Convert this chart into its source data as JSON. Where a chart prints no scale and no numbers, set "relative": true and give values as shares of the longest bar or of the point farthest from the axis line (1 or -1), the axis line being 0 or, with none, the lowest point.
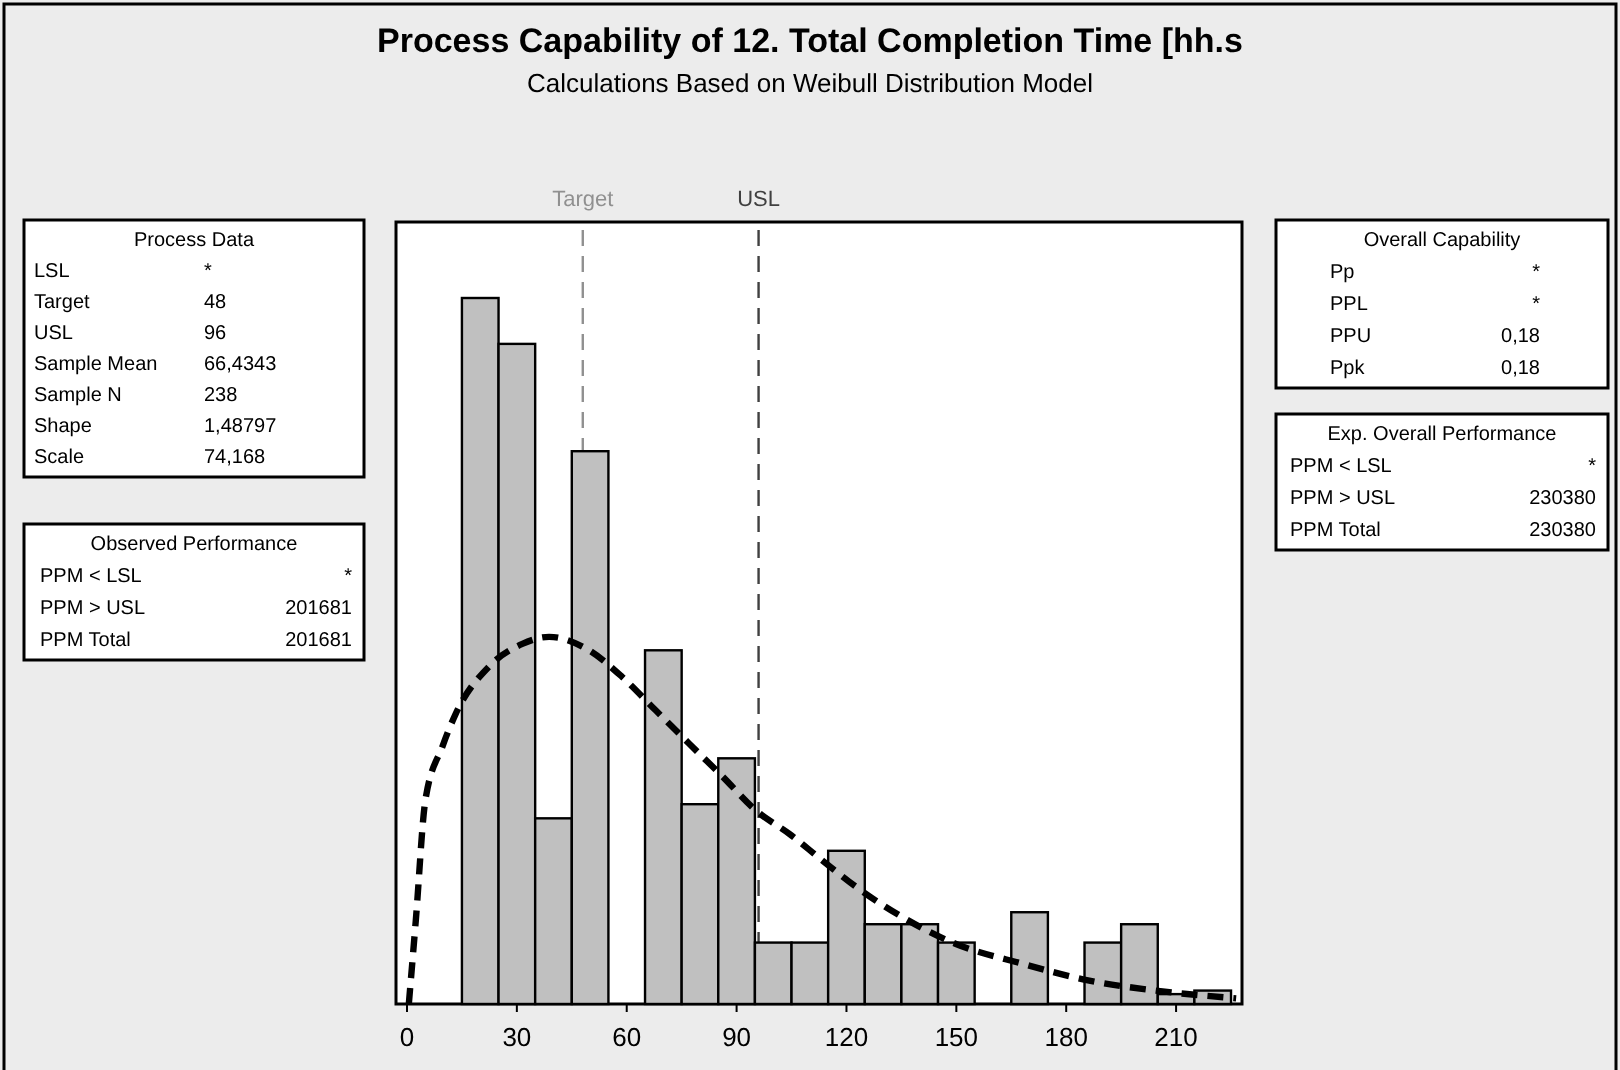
{
  "chart_data": [
    {
      "type": "histogram",
      "title": "Process Capability of 12. Total Completion Time [hh.s",
      "subtitle": "Calculations Based on Weibull Distribution Model",
      "relative": true,
      "color": "#c0c0c0",
      "bins": [
        15,
        25,
        35,
        45,
        55,
        65,
        75,
        85,
        95,
        105,
        115,
        125,
        135,
        145,
        155,
        165,
        175,
        185,
        195,
        205,
        215,
        225
      ],
      "values": [
        1,
        0.935,
        0.263,
        0.783,
        0,
        0.501,
        0.283,
        0.348,
        0.087,
        0.087,
        0.217,
        0.113,
        0.113,
        0.087,
        0,
        0.13,
        0,
        0.087,
        0.113,
        0.014,
        0.019
      ],
      "series": [
        {
          "type": "line",
          "color": "#000000",
          "line_style": "dashed",
          "x": [
            0.5,
            2.4,
            5,
            9.7,
            13.3,
            22.4,
            31.5,
            38.8,
            49.7,
            58.8,
            67.9,
            77,
            86.2,
            95.3,
            104.4,
            113.5,
            122.6,
            135.3,
            149.9,
            168.1,
            186.3,
            204.5,
            226.4
          ],
          "values": [
            0,
            0.118,
            0.288,
            0.365,
            0.411,
            0.478,
            0.51,
            0.52,
            0.501,
            0.463,
            0.416,
            0.369,
            0.322,
            0.274,
            0.241,
            0.203,
            0.166,
            0.123,
            0.085,
            0.057,
            0.033,
            0.019,
            0.008
          ]
        }
      ],
      "ref_lines": [
        {
          "axis": "x",
          "value": 48,
          "label": "Target",
          "color": "#909090",
          "line_style": "dashed"
        },
        {
          "axis": "x",
          "value": 96,
          "label": "USL",
          "color": "#404040",
          "line_style": "dashed"
        }
      ],
      "xlim": [
        -3,
        228
      ],
      "xticks": [
        0,
        30,
        60,
        90,
        120,
        150,
        180,
        210
      ]
    },
    {
      "type": "other",
      "title": "Process Data",
      "annotations": [
        "LSL",
        "*",
        "Target",
        "48",
        "USL",
        "96",
        "Sample Mean",
        "66,4343",
        "Sample N",
        "238",
        "Shape",
        "1,48797",
        "Scale",
        "74,168"
      ]
    },
    {
      "type": "other",
      "title": "Observed Performance",
      "annotations": [
        "PPM < LSL",
        "*",
        "PPM > USL",
        "201681",
        "PPM Total",
        "201681"
      ]
    },
    {
      "type": "other",
      "title": "Overall Capability",
      "annotations": [
        "Pp",
        "*",
        "PPL",
        "*",
        "PPU",
        "0,18",
        "Ppk",
        "0,18"
      ]
    },
    {
      "type": "other",
      "title": "Exp. Overall Performance",
      "annotations": [
        "PPM < LSL",
        "*",
        "PPM > USL",
        "230380",
        "PPM Total",
        "230380"
      ]
    }
  ]
}
